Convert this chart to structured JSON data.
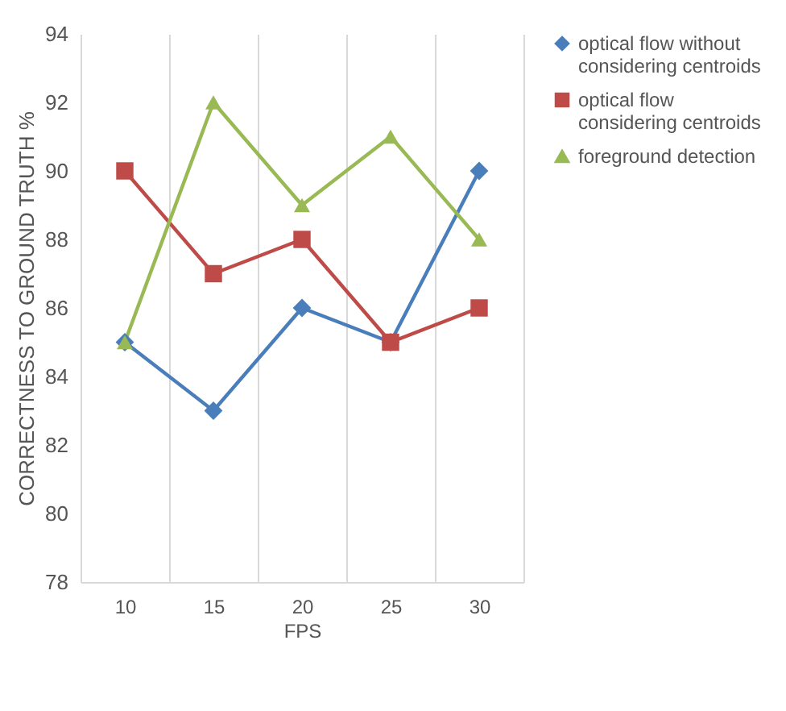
{
  "chart_data": {
    "type": "line",
    "xlabel": "FPS",
    "ylabel": "CORRECTNESS TO GROUND TRUTH  %",
    "categories": [
      "10",
      "15",
      "20",
      "25",
      "30"
    ],
    "series": [
      {
        "name": "optical flow without considering centroids",
        "color": "#4a7ebb",
        "marker": "diamond",
        "values": [
          85,
          83,
          86,
          85,
          90
        ]
      },
      {
        "name": "optical flow  considering centroids",
        "color": "#be4b48",
        "marker": "square",
        "values": [
          90,
          87,
          88,
          85,
          86
        ]
      },
      {
        "name": "foreground detection",
        "color": "#98b954",
        "marker": "triangle",
        "values": [
          85,
          92,
          89,
          91,
          88
        ]
      }
    ],
    "ylim": [
      78,
      94
    ],
    "yticks": [
      78,
      80,
      82,
      84,
      86,
      88,
      90,
      92,
      94
    ],
    "grid": "x",
    "legend": "right"
  }
}
